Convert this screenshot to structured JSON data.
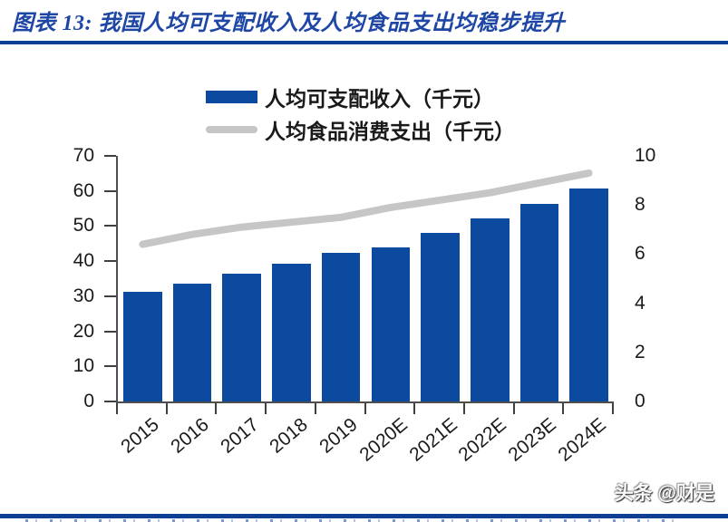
{
  "header": {
    "title": "图表 13: 我国人均可支配收入及人均食品支出均稳步提升"
  },
  "watermark": "头条 @财是",
  "colors": {
    "bar": "#0B4A9E",
    "line": "#C6C6C6",
    "title_blue": "#1D46A5",
    "rule_blue": "#0D3F94",
    "axis": "#4F4F4F",
    "text": "#1A1A1A"
  },
  "chart_data": {
    "type": "bar",
    "subtype": "bar+line combo, dual axis",
    "categories": [
      "2015",
      "2016",
      "2017",
      "2018",
      "2019",
      "2020E",
      "2021E",
      "2022E",
      "2023E",
      "2024E"
    ],
    "series": [
      {
        "name": "人均可支配收入（千元）",
        "type": "bar",
        "axis": "left",
        "color": "#0B4A9E",
        "values": [
          31.2,
          33.6,
          36.4,
          39.3,
          42.4,
          43.8,
          48.0,
          52.3,
          56.4,
          60.6
        ]
      },
      {
        "name": "人均食品消费支出（千元）",
        "type": "line",
        "axis": "right",
        "color": "#C6C6C6",
        "values": [
          6.4,
          6.8,
          7.1,
          7.3,
          7.5,
          7.9,
          8.2,
          8.5,
          8.9,
          9.3
        ]
      }
    ],
    "left_axis": {
      "min": 0,
      "max": 70,
      "ticks": [
        0,
        10,
        20,
        30,
        40,
        50,
        60,
        70
      ]
    },
    "right_axis": {
      "min": 0,
      "max": 10,
      "ticks": [
        0,
        2,
        4,
        6,
        8,
        10
      ]
    },
    "grid": false,
    "legend_position": "top-center"
  }
}
